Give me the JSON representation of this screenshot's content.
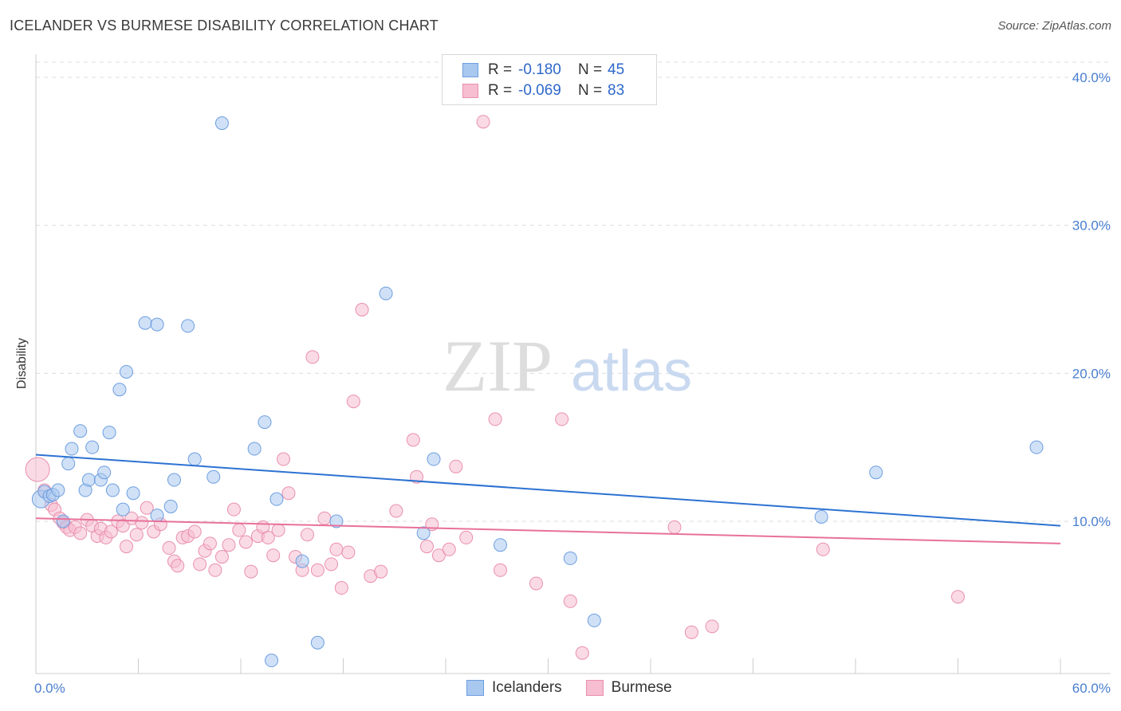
{
  "title": "ICELANDER VS BURMESE DISABILITY CORRELATION CHART",
  "source": "Source: ZipAtlas.com",
  "watermark": {
    "zip": "ZIP",
    "atlas": "atlas"
  },
  "legend": {
    "rows": [
      {
        "r_label": "R =",
        "r_value": "-0.180",
        "n_label": "N =",
        "n_value": "45"
      },
      {
        "r_label": "R =",
        "r_value": "-0.069",
        "n_label": "N =",
        "n_value": "83"
      }
    ]
  },
  "bottom_legend": {
    "series1": "Icelanders",
    "series2": "Burmese"
  },
  "colors": {
    "blue_fill": "#a9c8f0",
    "blue_stroke": "#6d9ee0",
    "blue_line": "#2d72d2",
    "pink_fill": "#f6bed0",
    "pink_stroke": "#ea8fae",
    "pink_line": "#e8719a",
    "tick_text": "#4a7fd0",
    "grid": "#dddddd"
  },
  "chart_data": {
    "type": "scatter",
    "title": "ICELANDER VS BURMESE DISABILITY CORRELATION CHART",
    "xlabel": "",
    "ylabel": "Disability",
    "xlim": [
      0,
      60
    ],
    "ylim": [
      0,
      40.5
    ],
    "x_tick_labels": [
      "0.0%",
      "60.0%"
    ],
    "y_ticks": [
      10,
      20,
      30,
      40
    ],
    "y_tick_labels": [
      "10.0%",
      "20.0%",
      "30.0%",
      "40.0%"
    ],
    "grid": true,
    "legend_position": "top-center",
    "series": [
      {
        "name": "Icelanders",
        "color": "#a9c8f0",
        "trend": {
          "x": [
            0,
            60
          ],
          "y": [
            14.5,
            9.7
          ]
        },
        "points": [
          [
            0.3,
            11.5
          ],
          [
            0.5,
            12.0
          ],
          [
            0.8,
            11.7
          ],
          [
            1.0,
            11.8
          ],
          [
            1.3,
            12.1
          ],
          [
            1.6,
            10.0
          ],
          [
            1.9,
            13.9
          ],
          [
            2.1,
            14.9
          ],
          [
            2.6,
            16.1
          ],
          [
            2.9,
            12.1
          ],
          [
            3.1,
            12.8
          ],
          [
            3.3,
            15.0
          ],
          [
            3.8,
            12.8
          ],
          [
            4.0,
            13.3
          ],
          [
            4.3,
            16.0
          ],
          [
            4.5,
            12.1
          ],
          [
            4.9,
            18.9
          ],
          [
            5.1,
            10.8
          ],
          [
            5.3,
            20.1
          ],
          [
            5.7,
            11.9
          ],
          [
            6.4,
            23.4
          ],
          [
            7.1,
            23.3
          ],
          [
            7.1,
            10.4
          ],
          [
            7.9,
            11.0
          ],
          [
            8.1,
            12.8
          ],
          [
            8.9,
            23.2
          ],
          [
            9.3,
            14.2
          ],
          [
            10.4,
            13.0
          ],
          [
            10.9,
            36.9
          ],
          [
            12.8,
            14.9
          ],
          [
            13.4,
            16.7
          ],
          [
            13.8,
            0.6
          ],
          [
            14.1,
            11.5
          ],
          [
            15.6,
            7.3
          ],
          [
            16.5,
            1.8
          ],
          [
            17.6,
            10.0
          ],
          [
            20.5,
            25.4
          ],
          [
            22.7,
            9.2
          ],
          [
            23.3,
            14.2
          ],
          [
            27.2,
            8.4
          ],
          [
            31.3,
            7.5
          ],
          [
            32.7,
            3.3
          ],
          [
            46.0,
            10.3
          ],
          [
            49.2,
            13.3
          ],
          [
            58.6,
            15.0
          ]
        ]
      },
      {
        "name": "Burmese",
        "color": "#f6bed0",
        "trend": {
          "x": [
            0,
            60
          ],
          "y": [
            10.2,
            8.5
          ]
        },
        "points": [
          [
            0.1,
            13.5
          ],
          [
            0.5,
            12.1
          ],
          [
            0.9,
            11.1
          ],
          [
            1.1,
            10.8
          ],
          [
            1.4,
            10.2
          ],
          [
            1.6,
            9.9
          ],
          [
            1.8,
            9.6
          ],
          [
            2.0,
            9.4
          ],
          [
            2.3,
            9.6
          ],
          [
            2.6,
            9.2
          ],
          [
            3.0,
            10.1
          ],
          [
            3.3,
            9.7
          ],
          [
            3.6,
            9.0
          ],
          [
            3.8,
            9.5
          ],
          [
            4.1,
            8.9
          ],
          [
            4.4,
            9.3
          ],
          [
            4.8,
            10.0
          ],
          [
            5.1,
            9.7
          ],
          [
            5.3,
            8.3
          ],
          [
            5.6,
            10.2
          ],
          [
            5.9,
            9.1
          ],
          [
            6.2,
            9.9
          ],
          [
            6.5,
            10.9
          ],
          [
            6.9,
            9.3
          ],
          [
            7.3,
            9.8
          ],
          [
            7.8,
            8.2
          ],
          [
            8.1,
            7.3
          ],
          [
            8.3,
            7.0
          ],
          [
            8.6,
            8.9
          ],
          [
            8.9,
            9.0
          ],
          [
            9.3,
            9.3
          ],
          [
            9.6,
            7.1
          ],
          [
            9.9,
            8.0
          ],
          [
            10.2,
            8.5
          ],
          [
            10.5,
            6.7
          ],
          [
            10.9,
            7.6
          ],
          [
            11.3,
            8.4
          ],
          [
            11.6,
            10.8
          ],
          [
            11.9,
            9.4
          ],
          [
            12.3,
            8.6
          ],
          [
            12.6,
            6.6
          ],
          [
            13.0,
            9.0
          ],
          [
            13.3,
            9.6
          ],
          [
            13.6,
            8.9
          ],
          [
            13.9,
            7.7
          ],
          [
            14.2,
            9.4
          ],
          [
            14.5,
            14.2
          ],
          [
            14.8,
            11.9
          ],
          [
            15.2,
            7.6
          ],
          [
            15.6,
            6.7
          ],
          [
            15.9,
            9.1
          ],
          [
            16.2,
            21.1
          ],
          [
            16.5,
            6.7
          ],
          [
            16.9,
            10.2
          ],
          [
            17.3,
            7.1
          ],
          [
            17.6,
            8.1
          ],
          [
            17.9,
            5.5
          ],
          [
            18.3,
            7.9
          ],
          [
            18.6,
            18.1
          ],
          [
            19.1,
            24.3
          ],
          [
            19.6,
            6.3
          ],
          [
            20.2,
            6.6
          ],
          [
            21.1,
            10.7
          ],
          [
            22.1,
            15.5
          ],
          [
            22.3,
            13.0
          ],
          [
            22.9,
            8.3
          ],
          [
            23.2,
            9.8
          ],
          [
            23.6,
            7.7
          ],
          [
            24.2,
            8.1
          ],
          [
            24.6,
            13.7
          ],
          [
            25.2,
            8.9
          ],
          [
            26.2,
            37.0
          ],
          [
            26.9,
            16.9
          ],
          [
            27.2,
            6.7
          ],
          [
            29.3,
            5.8
          ],
          [
            30.8,
            16.9
          ],
          [
            31.3,
            4.6
          ],
          [
            32.0,
            1.1
          ],
          [
            37.4,
            9.6
          ],
          [
            38.4,
            2.5
          ],
          [
            39.6,
            2.9
          ],
          [
            46.1,
            8.1
          ],
          [
            54.0,
            4.9
          ]
        ]
      }
    ]
  }
}
